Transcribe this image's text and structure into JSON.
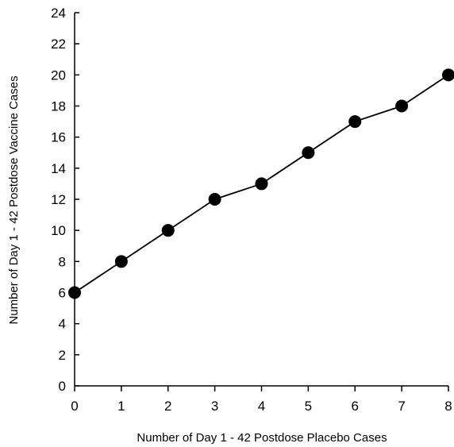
{
  "chart_data": {
    "type": "line",
    "title": "",
    "xlabel": "Number of Day 1 - 42 Postdose Placebo Cases",
    "ylabel": "Number of Day 1 - 42 Postdose Vaccine Cases",
    "xlim": [
      0,
      8
    ],
    "ylim": [
      0,
      24
    ],
    "x_ticks": [
      "0",
      "1",
      "2",
      "3",
      "4",
      "5",
      "6",
      "7",
      "8"
    ],
    "y_ticks": [
      "0",
      "2",
      "4",
      "6",
      "8",
      "10",
      "12",
      "14",
      "16",
      "18",
      "20",
      "22",
      "24"
    ],
    "grid": false,
    "legend": "none",
    "series": [
      {
        "x": [
          0,
          1,
          2,
          3,
          4,
          5,
          6,
          7,
          8
        ],
        "y": [
          6,
          8,
          10,
          12,
          13,
          15,
          17,
          18,
          20
        ],
        "color": "#000000",
        "marker": "filled-circle"
      }
    ]
  }
}
